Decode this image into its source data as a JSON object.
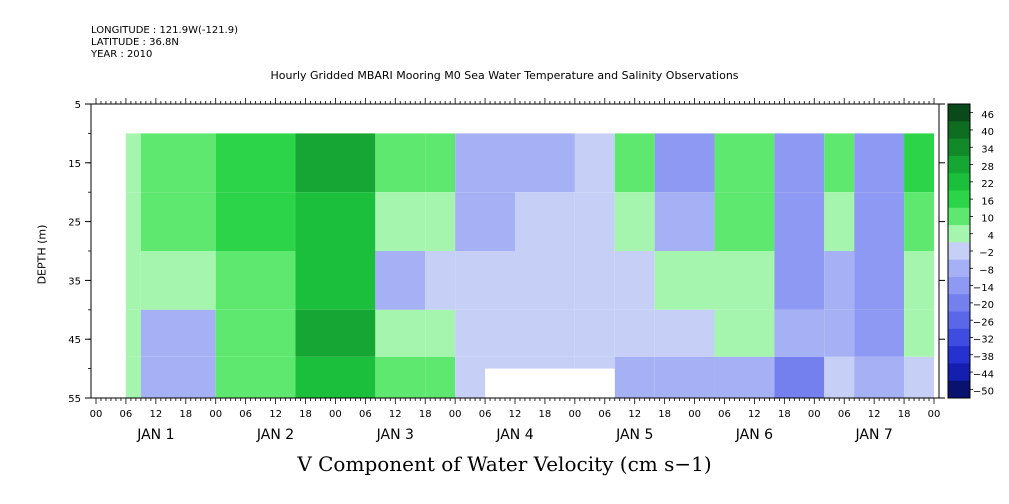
{
  "header": {
    "longitude": "LONGITUDE : 121.9W(-121.9)",
    "latitude": "LATITUDE : 36.8N",
    "year": "YEAR : 2010"
  },
  "chart_data": {
    "type": "heatmap",
    "title": "Hourly Gridded MBARI Mooring M0 Sea Water Temperature and Salinity Observations",
    "subtitle": "V Component of Water Velocity (cm s−1)",
    "ylabel": "DEPTH (m)",
    "y_ticks": [
      "5",
      "15",
      "25",
      "35",
      "45",
      "55"
    ],
    "ylim": [
      5,
      55
    ],
    "x_hour_ticks": [
      "00",
      "06",
      "12",
      "18",
      "00",
      "06",
      "12",
      "18",
      "00",
      "06",
      "12",
      "18",
      "00",
      "06",
      "12",
      "18",
      "00",
      "06",
      "12",
      "18",
      "00",
      "06",
      "12",
      "18",
      "00",
      "06",
      "12",
      "18",
      "00"
    ],
    "x_day_labels": [
      "JAN  1",
      "JAN  2",
      "JAN  3",
      "JAN  4",
      "JAN  5",
      "JAN  6",
      "JAN  7"
    ],
    "colorbar": {
      "levels": [
        46,
        40,
        34,
        28,
        22,
        16,
        10,
        4,
        -2,
        -8,
        -14,
        -20,
        -26,
        -32,
        -38,
        -44,
        -50
      ],
      "labels": [
        "46",
        "40",
        "34",
        "28",
        "22",
        "16",
        "10",
        "4",
        "−2",
        "−8",
        "−14",
        "−20",
        "−26",
        "−32",
        "−38",
        "−44",
        "−50"
      ]
    },
    "data_depth_range": [
      10,
      55
    ],
    "data_time_start_hour": 6,
    "data_time_end_hour": 168,
    "bands": [
      {
        "from_hour": 6,
        "to_hour": 9,
        "values_by_depth": [
          8,
          8,
          8,
          8,
          8
        ]
      },
      {
        "from_hour": 9,
        "to_hour": 24,
        "values_by_depth": [
          14,
          12,
          4,
          -8,
          -4
        ]
      },
      {
        "from_hour": 24,
        "to_hour": 40,
        "values_by_depth": [
          18,
          16,
          12,
          10,
          10
        ]
      },
      {
        "from_hour": 40,
        "to_hour": 56,
        "values_by_depth": [
          30,
          26,
          22,
          28,
          22
        ]
      },
      {
        "from_hour": 56,
        "to_hour": 66,
        "values_by_depth": [
          14,
          4,
          -4,
          8,
          10
        ]
      },
      {
        "from_hour": 66,
        "to_hour": 72,
        "values_by_depth": [
          12,
          8,
          -2,
          6,
          10
        ]
      },
      {
        "from_hour": 72,
        "to_hour": 84,
        "values_by_depth": [
          -6,
          -4,
          0,
          2,
          2
        ]
      },
      {
        "from_hour": 84,
        "to_hour": 96,
        "values_by_depth": [
          -8,
          0,
          2,
          2,
          2
        ]
      },
      {
        "from_hour": 96,
        "to_hour": 104,
        "values_by_depth": [
          2,
          2,
          2,
          2,
          2
        ]
      },
      {
        "from_hour": 104,
        "to_hour": 112,
        "values_by_depth": [
          10,
          4,
          0,
          -2,
          -6
        ]
      },
      {
        "from_hour": 112,
        "to_hour": 124,
        "values_by_depth": [
          -10,
          -8,
          4,
          2,
          -6
        ]
      },
      {
        "from_hour": 124,
        "to_hour": 136,
        "values_by_depth": [
          12,
          10,
          6,
          4,
          -4
        ]
      },
      {
        "from_hour": 136,
        "to_hour": 146,
        "values_by_depth": [
          -14,
          -14,
          -10,
          -6,
          -18
        ]
      },
      {
        "from_hour": 146,
        "to_hour": 152,
        "values_by_depth": [
          10,
          4,
          -4,
          -6,
          2
        ]
      },
      {
        "from_hour": 152,
        "to_hour": 162,
        "values_by_depth": [
          -10,
          -12,
          -14,
          -10,
          -8
        ]
      },
      {
        "from_hour": 162,
        "to_hour": 168,
        "values_by_depth": [
          16,
          12,
          8,
          6,
          2
        ]
      }
    ],
    "missing_region": {
      "from_hour": 78,
      "to_hour": 104,
      "depth_from": 50,
      "depth_to": 55
    }
  }
}
